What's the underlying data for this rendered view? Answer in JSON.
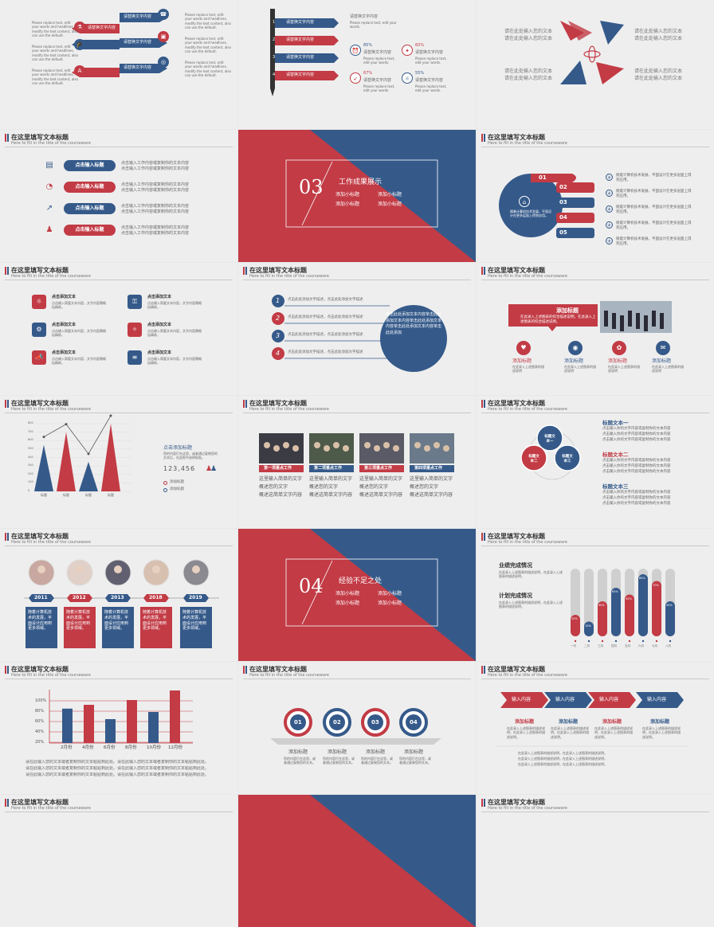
{
  "colors": {
    "red": "#c23b45",
    "blue": "#355a8a",
    "bg": "#eeeeee"
  },
  "header": {
    "title": "在这里填写文本标题",
    "subtitle": "Here to fill in the title of the courseware"
  },
  "s1": {
    "labels": [
      "请替换文字内容",
      "请替换文字内容",
      "请替换文字内容",
      "请替换文字内容"
    ],
    "side_text": "Please replace text, edit your words and headlines, modify the text content, also can use the default."
  },
  "s2": {
    "labels": [
      "请替换文字内容",
      "请替换文字内容",
      "请替换文字内容",
      "请替换文字内容"
    ],
    "right_title": "请替换文字内容",
    "percents": [
      "85%",
      "60%",
      "67%",
      "55%"
    ],
    "item_title": "请替换文字内容",
    "small_text": "Please replace text, edit your words."
  },
  "s3": {
    "text_lines": [
      "请在此处输入您的文本",
      "请在此处输入您的文本"
    ]
  },
  "s4": {
    "buttons": [
      "点击输入标题",
      "点击输入标题",
      "点击输入标题",
      "点击输入标题"
    ],
    "desc": "点击输入工作内容或复制你的文本内容"
  },
  "s5": {
    "number": "03",
    "title": "工作成果展示",
    "sub": "添加小标题"
  },
  "s6": {
    "nums": [
      "01",
      "02",
      "03",
      "04",
      "05"
    ],
    "desc": "随着计算机技术发展，平面设计在更多层面上得到应用。"
  },
  "s7": {
    "item_title": "点击添加文本",
    "desc": "点击输入简要文本内容，文字内容需概括精炼。"
  },
  "s8": {
    "nums": [
      "1",
      "2",
      "3",
      "4"
    ],
    "line_text": "点击此处添加文字描述，点击此处添加文字描述",
    "circle_text": "单击此处添加文本内容单击此处添加文本内容单击此处添加文本内容单击此处添加文本内容单击此处添加"
  },
  "s9": {
    "banner_title": "添加标题",
    "banner_text": "在此录入上述图表的综合描述说明，在此录入上述图表的综合描述说明。",
    "label": "添加标题",
    "desc": "在此录入上述图表的描述说明"
  },
  "s10": {
    "chart_data": {
      "type": "area",
      "categories": [
        "标题",
        "标题",
        "标题",
        "标题"
      ],
      "values": [
        550,
        700,
        350,
        800
      ],
      "ylim": [
        0,
        800
      ],
      "ticks": [
        "800",
        "700",
        "600",
        "500",
        "400",
        "300",
        "200",
        "100",
        "0"
      ]
    },
    "side_title": "点击添加标题",
    "side_text": "您的内容打在这里，或者通过复制您的文本后，在此框中选择粘贴。",
    "number": "123,456",
    "legend": [
      "添加标题",
      "添加标题"
    ]
  },
  "s11": {
    "captions": [
      "第一项重点工作",
      "第二项重点工作",
      "第三项重点工作",
      "第四项重点工作"
    ],
    "body": [
      "这里输入简单的文字",
      "概述您的文字",
      "概述这简单文字内容"
    ]
  },
  "s12": {
    "circles": [
      "标题文本一",
      "标题文本二",
      "标题文本三"
    ],
    "titles": [
      "标题文本一",
      "标题文本二",
      "标题文本三"
    ],
    "desc": "点击输入你的文字内容或复制你的文本内容"
  },
  "s13": {
    "years": [
      "2011",
      "2012",
      "2013",
      "2018",
      "2019"
    ],
    "desc": "随着计算机技术的发展，平面设计应用到更多领域。"
  },
  "s14": {
    "number": "04",
    "title": "经验不足之处",
    "sub": "添加小标题"
  },
  "s15": {
    "label_a": "业绩完成情况",
    "label_b": "计划完成情况",
    "desc": "在此录入上述图表的描述说明，在此录入上述图表的描述说明。",
    "chart_data": {
      "type": "bar",
      "categories": [
        "一月",
        "二月",
        "三月",
        "四月",
        "五月",
        "六月",
        "七月",
        "八月"
      ],
      "values": [
        20,
        10,
        40,
        60,
        50,
        80,
        70,
        40
      ],
      "value_labels": [
        "20%",
        "10%",
        "40%",
        "60%",
        "50%",
        "80%",
        "70%",
        "40%"
      ]
    }
  },
  "s16": {
    "chart_data": {
      "type": "bar",
      "categories": [
        "2月份",
        "4月份",
        "6月份",
        "8月份",
        "10月份",
        "12月份"
      ],
      "values": [
        72,
        80,
        50,
        90,
        65,
        110
      ],
      "ticks": [
        "100%",
        "80%",
        "60%",
        "40%",
        "20%"
      ]
    },
    "desc": "请在此输入您的文本或者复制你的文本粘贴到此处。请在此输入您的文本或者复制你的文本粘贴到此处。"
  },
  "s17": {
    "nums": [
      "01",
      "02",
      "03",
      "04"
    ],
    "label": "添加标题",
    "desc": "您的内容打在这里，或者通过复制您的文本。"
  },
  "s18": {
    "arrows": [
      "输入内容",
      "输入内容",
      "输入内容",
      "输入内容"
    ],
    "label": "添加标题",
    "desc": "在此录入上述图表的描述说明，在此录入上述图表的描述说明。"
  }
}
